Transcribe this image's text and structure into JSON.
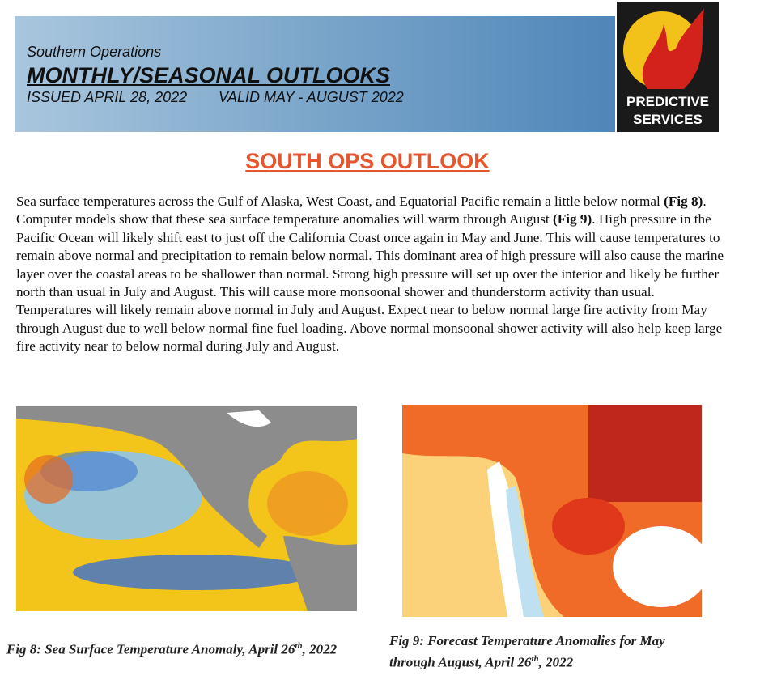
{
  "header": {
    "org": "Southern Operations",
    "title": "MONTHLY/SEASONAL OUTLOOKS",
    "issued": "ISSUED APRIL 28, 2022",
    "valid": "VALID MAY - AUGUST 2022"
  },
  "logo": {
    "line1": "PREDICTIVE",
    "line2": "SERVICES"
  },
  "section_title": "SOUTH OPS OUTLOOK",
  "paragraph": [
    {
      "text": "Sea surface temperatures across the Gulf of Alaska, West Coast, and Equatorial Pacific remain a little below normal ",
      "bold": false
    },
    {
      "text": "(Fig 8)",
      "bold": true
    },
    {
      "text": ". Computer models show that these sea surface temperature anomalies will warm through August ",
      "bold": false
    },
    {
      "text": "(Fig 9)",
      "bold": true
    },
    {
      "text": ". High pressure in the Pacific Ocean will likely shift east to just off the California Coast once again in May and June. This will cause temperatures to remain above normal and precipitation to remain below normal. This dominant area of high pressure will also cause the marine layer over the coastal areas to be shallower than normal. Strong high pressure will set up over the interior and likely be further north than usual in July and August. This will cause more monsoonal shower and thunderstorm activity than usual. Temperatures will likely remain above normal in July and August. Expect near to below normal large fire activity from May through August due to well below normal fine fuel loading. Above normal monsoonal shower activity will also help keep large fire activity near to below normal during July and August.",
      "bold": false
    }
  ],
  "figures": [
    {
      "caption": [
        "Fig 8: Sea Surface Temperature Anomaly, April 26",
        "th",
        ", 2022"
      ]
    },
    {
      "caption": [
        "Fig 9: Forecast Temperature Anomalies for May through August, April 26",
        "th",
        ", 2022"
      ]
    }
  ]
}
